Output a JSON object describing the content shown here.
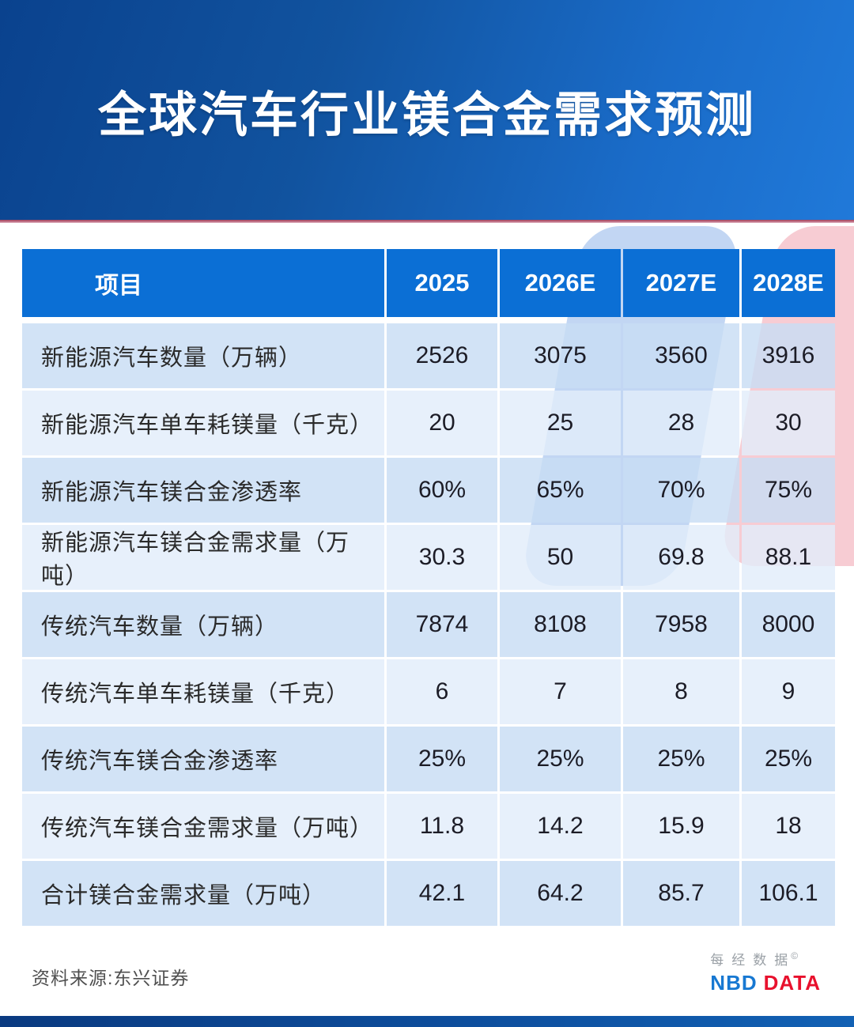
{
  "header": {
    "title": "全球汽车行业镁合金需求预测"
  },
  "table": {
    "columns": [
      "项目",
      "2025",
      "2026E",
      "2027E",
      "2028E"
    ],
    "rows": [
      {
        "label": "新能源汽车数量（万辆）",
        "values": [
          "2526",
          "3075",
          "3560",
          "3916"
        ]
      },
      {
        "label": "新能源汽车单车耗镁量（千克）",
        "values": [
          "20",
          "25",
          "28",
          "30"
        ]
      },
      {
        "label": "新能源汽车镁合金渗透率",
        "values": [
          "60%",
          "65%",
          "70%",
          "75%"
        ]
      },
      {
        "label": "新能源汽车镁合金需求量（万吨）",
        "values": [
          "30.3",
          "50",
          "69.8",
          "88.1"
        ]
      },
      {
        "label": "传统汽车数量（万辆）",
        "values": [
          "7874",
          "8108",
          "7958",
          "8000"
        ]
      },
      {
        "label": "传统汽车单车耗镁量（千克）",
        "values": [
          "6",
          "7",
          "8",
          "9"
        ]
      },
      {
        "label": "传统汽车镁合金渗透率",
        "values": [
          "25%",
          "25%",
          "25%",
          "25%"
        ]
      },
      {
        "label": "传统汽车镁合金需求量（万吨）",
        "values": [
          "11.8",
          "14.2",
          "15.9",
          "18"
        ]
      },
      {
        "label": "合计镁合金需求量（万吨）",
        "values": [
          "42.1",
          "64.2",
          "85.7",
          "106.1"
        ]
      }
    ]
  },
  "footer": {
    "source": "资料来源:东兴证券",
    "logo": {
      "cn": "每经数据",
      "copyright": "©",
      "nbd": "NBD",
      "data": "DATA"
    }
  },
  "colors": {
    "banner_left": "#0a428e",
    "banner_right": "#2079d9",
    "separator_red": "#a04059",
    "header_blue": "#0b6fd5",
    "row_dark": "#d2e3f6",
    "row_light": "#e6effb",
    "logo_nbd_blue": "#1778d2",
    "logo_data_red": "#e8112d"
  },
  "chart_data": {
    "type": "table",
    "title": "全球汽车行业镁合金需求预测",
    "columns": [
      "项目",
      "2025",
      "2026E",
      "2027E",
      "2028E"
    ],
    "rows": [
      [
        "新能源汽车数量（万辆）",
        2526,
        3075,
        3560,
        3916
      ],
      [
        "新能源汽车单车耗镁量（千克）",
        20,
        25,
        28,
        30
      ],
      [
        "新能源汽车镁合金渗透率",
        "60%",
        "65%",
        "70%",
        "75%"
      ],
      [
        "新能源汽车镁合金需求量（万吨）",
        30.3,
        50,
        69.8,
        88.1
      ],
      [
        "传统汽车数量（万辆）",
        7874,
        8108,
        7958,
        8000
      ],
      [
        "传统汽车单车耗镁量（千克）",
        6,
        7,
        8,
        9
      ],
      [
        "传统汽车镁合金渗透率",
        "25%",
        "25%",
        "25%",
        "25%"
      ],
      [
        "传统汽车镁合金需求量（万吨）",
        11.8,
        14.2,
        15.9,
        18
      ],
      [
        "合计镁合金需求量（万吨）",
        42.1,
        64.2,
        85.7,
        106.1
      ]
    ],
    "source": "东兴证券"
  }
}
